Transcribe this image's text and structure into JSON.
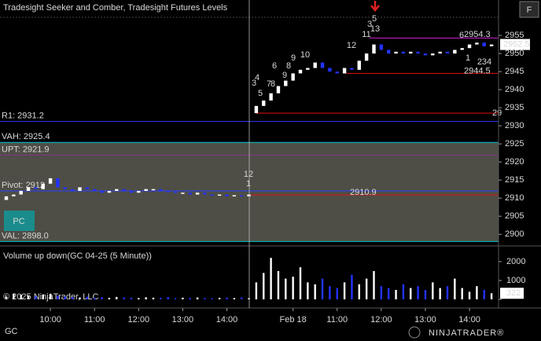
{
  "ui": {
    "title": "Tradesight Seeker and Comber, Tradesight Futures Levels",
    "f_button": "F",
    "pc_button": "PC",
    "copyright": "© 2025 NinjaTrader, LLC",
    "instrument": "GC",
    "logo": "NINJATRADER®"
  },
  "chart_data": [
    {
      "type": "candlestick",
      "open": [
        2909.5,
        2910.5,
        2911,
        2912,
        2913,
        2912.5,
        2914,
        2915.5,
        2913,
        2912.5,
        2912,
        2913,
        2912.5,
        2912,
        2911.5,
        2912,
        2912.5,
        2912,
        2911.5,
        2912,
        2912.5,
        2912.5,
        2912,
        2911.8,
        2911.5,
        2911.5,
        2911,
        2911.5,
        2911,
        2910.8,
        2911,
        2910.5,
        2910.8,
        2910.5,
        2933.5,
        2935.5,
        2937,
        2939,
        2941,
        2942.5,
        2944.5,
        2945.5,
        2946,
        2947.5,
        2946,
        2945,
        2944.5,
        2946,
        2945.5,
        2948,
        2950,
        2952.5,
        2951,
        2950,
        2950.5,
        2950,
        2950.5,
        2950,
        2949.5,
        2950,
        2950.5,
        2950,
        2951,
        2951.5,
        2952.5,
        2953,
        2952
      ],
      "close": [
        2910.5,
        2911,
        2912,
        2913,
        2912.5,
        2914,
        2915.5,
        2913,
        2912.5,
        2912,
        2913,
        2912.5,
        2912,
        2911.5,
        2912,
        2912.5,
        2912,
        2911.5,
        2912,
        2912.5,
        2912.5,
        2912,
        2911.8,
        2911.5,
        2911.5,
        2911,
        2911.5,
        2911,
        2910.8,
        2911,
        2910.5,
        2910.8,
        2910.5,
        2911,
        2935.5,
        2937,
        2939,
        2941,
        2942.5,
        2944.5,
        2945.5,
        2946,
        2947.5,
        2946,
        2945,
        2944.5,
        2946,
        2945.5,
        2948,
        2950,
        2952.5,
        2951,
        2950,
        2950.5,
        2950,
        2950.5,
        2950,
        2949.5,
        2950,
        2950.5,
        2950,
        2951,
        2951.5,
        2952.5,
        2953,
        2952,
        2952.5
      ],
      "up_color": "#ffffff",
      "down_color": "#2233ff",
      "xlim": [
        0,
        66
      ],
      "xticks": [
        {
          "value": 6,
          "label": "10:00"
        },
        {
          "value": 12,
          "label": "11:00"
        },
        {
          "value": 18,
          "label": "12:00"
        },
        {
          "value": 24,
          "label": "13:00"
        },
        {
          "value": 30,
          "label": "14:00"
        },
        {
          "value": 39,
          "label": "Feb 18"
        },
        {
          "value": 45,
          "label": "11:00"
        },
        {
          "value": 51,
          "label": "12:00"
        },
        {
          "value": 57,
          "label": "13:00"
        },
        {
          "value": 63,
          "label": "14:00"
        }
      ],
      "ylim": [
        2897,
        2964.8
      ],
      "yticks": [
        2900,
        2905,
        2910,
        2915,
        2920,
        2925,
        2930,
        2935,
        2940,
        2945,
        2950,
        2955
      ],
      "levels": [
        {
          "label": "R1: 2931.2",
          "value": 2931.2,
          "color": "#2a3cff"
        },
        {
          "label": "VAH: 2925.4",
          "value": 2925.4,
          "color": "#00c8c8"
        },
        {
          "label": "UPT: 2921.9",
          "value": 2921.9,
          "color": "#8b2f8b"
        },
        {
          "label": "Pivot: 2912",
          "value": 2912,
          "color": "#2a3cff"
        },
        {
          "label": "VAL: 2898.0",
          "value": 2898.0,
          "color": "#00c8c8"
        },
        {
          "label": "2910.9",
          "value": 2910.9,
          "color": "#e01010"
        },
        {
          "label": "2944.5",
          "value": 2944.5,
          "color": "#e01010"
        },
        {
          "label": "2954.3",
          "value": 2954.3,
          "color": "#d020d0"
        },
        {
          "label": "29",
          "value": 2933.5,
          "color": "#e01010"
        }
      ],
      "annotations": [
        {
          "text": "12",
          "color": "#19d3d3"
        },
        {
          "text": "1",
          "color": "#1e9b1e"
        },
        {
          "text": "3",
          "color": "#19d3d3"
        },
        {
          "text": "4",
          "color": "#19d3d3"
        },
        {
          "text": "5",
          "color": "#1e9b1e"
        },
        {
          "text": "7",
          "color": "#1e9b1e"
        },
        {
          "text": "8",
          "color": "#1e9b1e"
        },
        {
          "text": "6",
          "color": "#19d3d3"
        },
        {
          "text": "8",
          "color": "#19d3d3"
        },
        {
          "text": "9",
          "color": "#1e9b1e"
        },
        {
          "text": "9",
          "color": "#19d3d3"
        },
        {
          "text": "10",
          "color": "#19d3d3"
        },
        {
          "text": "12",
          "color": "#19d3d3"
        },
        {
          "text": "11",
          "color": "#ffffff"
        },
        {
          "text": "3",
          "color": "#19d3d3"
        },
        {
          "text": "13",
          "color": "#19d3d3"
        },
        {
          "text": "5",
          "color": "#19d3d3"
        },
        {
          "text": "6",
          "color": "#19d3d3"
        },
        {
          "text": "1",
          "color": "#1e9b1e"
        },
        {
          "text": "234",
          "color": "#1e9b1e"
        }
      ]
    },
    {
      "type": "bar",
      "title": "Volume up down(GC 04-25 (5 Minute))",
      "values": [
        150,
        300,
        250,
        200,
        180,
        260,
        300,
        200,
        150,
        120,
        100,
        140,
        90,
        110,
        80,
        130,
        100,
        90,
        70,
        110,
        90,
        80,
        120,
        60,
        90,
        80,
        100,
        70,
        60,
        80,
        90,
        70,
        100,
        60,
        900,
        1400,
        2200,
        1500,
        1100,
        1200,
        1700,
        900,
        800,
        1100,
        700,
        600,
        900,
        1300,
        800,
        1100,
        1500,
        700,
        600,
        500,
        800,
        600,
        700,
        500,
        900,
        600,
        700,
        1100,
        600,
        400,
        700,
        500,
        322
      ],
      "ylim": [
        0,
        2625
      ],
      "yticks": [
        0,
        1000,
        2000
      ]
    }
  ]
}
